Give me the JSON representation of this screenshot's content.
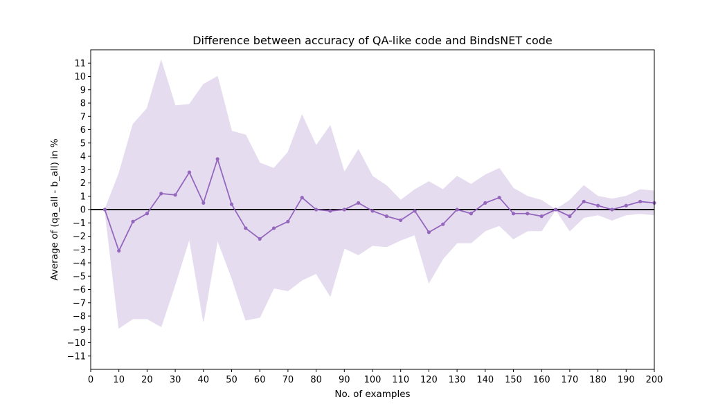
{
  "chart_data": {
    "type": "line",
    "title": "Difference between accuracy of QA-like code and BindsNET code",
    "xlabel": "No. of examples",
    "ylabel": "Average of (qa_all - b_all) in %",
    "xlim": [
      0,
      200
    ],
    "ylim": [
      -12,
      12
    ],
    "xticks": [
      "0",
      "10",
      "20",
      "30",
      "40",
      "50",
      "60",
      "70",
      "80",
      "90",
      "100",
      "110",
      "120",
      "130",
      "140",
      "150",
      "160",
      "170",
      "180",
      "190",
      "200"
    ],
    "yticks": [
      "−11",
      "−10",
      "−9",
      "−8",
      "−7",
      "−6",
      "−5",
      "−4",
      "−3",
      "−2",
      "−1",
      "0",
      "1",
      "2",
      "3",
      "4",
      "5",
      "6",
      "7",
      "8",
      "9",
      "10",
      "11"
    ],
    "grid": false,
    "zero_line": true,
    "series": [
      {
        "color": "#9467bd",
        "band_color": "#e6dcf0",
        "x": [
          5,
          10,
          15,
          20,
          25,
          30,
          35,
          40,
          45,
          50,
          55,
          60,
          65,
          70,
          75,
          80,
          85,
          90,
          95,
          100,
          105,
          110,
          115,
          120,
          125,
          130,
          135,
          140,
          145,
          150,
          155,
          160,
          165,
          170,
          175,
          180,
          185,
          190,
          195,
          200
        ],
        "values": [
          0,
          -3.1,
          -0.9,
          -0.3,
          1.2,
          1.1,
          2.8,
          0.5,
          3.8,
          0.4,
          -1.4,
          -2.2,
          -1.4,
          -0.9,
          0.9,
          0,
          -0.1,
          0,
          0.5,
          -0.1,
          -0.5,
          -0.8,
          -0.1,
          -1.7,
          -1.1,
          0,
          -0.3,
          0.5,
          0.9,
          -0.3,
          -0.3,
          -0.5,
          0,
          -0.5,
          0.6,
          0.3,
          0,
          0.3,
          0.6,
          0.5
        ],
        "upper": [
          0,
          2.7,
          6.4,
          7.6,
          11.2,
          7.8,
          7.9,
          9.4,
          10,
          5.9,
          5.6,
          3.5,
          3.1,
          4.3,
          7.1,
          4.8,
          6.3,
          2.8,
          4.5,
          2.5,
          1.8,
          0.7,
          1.5,
          2.1,
          1.5,
          2.5,
          1.9,
          2.6,
          3.1,
          1.6,
          1,
          0.7,
          0,
          0.7,
          1.8,
          1.0,
          0.8,
          1.0,
          1.5,
          1.4
        ],
        "lower": [
          0,
          -8.9,
          -8.2,
          -8.2,
          -8.8,
          -5.6,
          -2.2,
          -8.4,
          -2.3,
          -5.1,
          -8.3,
          -8.1,
          -5.9,
          -6.1,
          -5.3,
          -4.8,
          -6.5,
          -2.9,
          -3.4,
          -2.7,
          -2.8,
          -2.3,
          -1.9,
          -5.5,
          -3.7,
          -2.5,
          -2.5,
          -1.6,
          -1.2,
          -2.2,
          -1.6,
          -1.6,
          0,
          -1.6,
          -0.6,
          -0.4,
          -0.8,
          -0.4,
          -0.3,
          -0.4
        ]
      }
    ]
  }
}
